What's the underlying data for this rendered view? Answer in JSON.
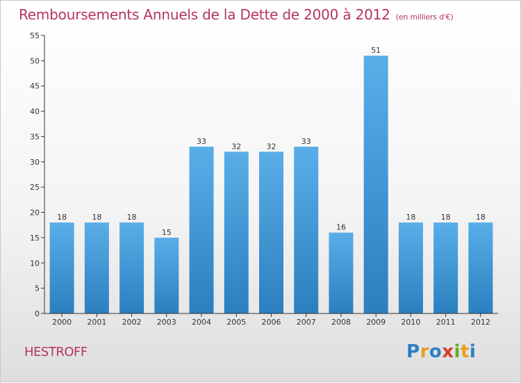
{
  "chart_data": {
    "type": "bar",
    "title": "Remboursements Annuels de la Dette de 2000 à 2012",
    "subtitle": "(en milliers d'€)",
    "categories": [
      "2000",
      "2001",
      "2002",
      "2003",
      "2004",
      "2005",
      "2006",
      "2007",
      "2008",
      "2009",
      "2010",
      "2011",
      "2012"
    ],
    "values": [
      18,
      18,
      18,
      15,
      33,
      32,
      32,
      33,
      16,
      51,
      18,
      18,
      18
    ],
    "data_labels": [
      "18",
      "18",
      "18",
      "15",
      "33",
      "32",
      "32",
      "33",
      "16",
      "51",
      "18",
      "18",
      "18"
    ],
    "ylim": [
      0,
      55
    ],
    "yticks": [
      0,
      5,
      10,
      15,
      20,
      25,
      30,
      35,
      40,
      45,
      50,
      55
    ],
    "xlabel": "",
    "ylabel": "",
    "grid": false,
    "legend": "none",
    "bar_color": "#3a8fd0"
  },
  "footer": {
    "commune": "HESTROFF",
    "logo": {
      "text": "Proxiti",
      "letters": [
        {
          "ch": "P",
          "color": "#2a7fc3"
        },
        {
          "ch": "r",
          "color": "#e8a020"
        },
        {
          "ch": "o",
          "color": "#2a7fc3"
        },
        {
          "ch": "x",
          "color": "#d93a2a"
        },
        {
          "ch": "i",
          "color": "#5fae2e"
        },
        {
          "ch": "t",
          "color": "#e8a020"
        },
        {
          "ch": "i",
          "color": "#2a7fc3"
        }
      ]
    }
  },
  "colors": {
    "title": "#b5345f",
    "axis": "#333333",
    "bar_light": "#5aaee8",
    "bar_dark": "#2b7fbf"
  }
}
